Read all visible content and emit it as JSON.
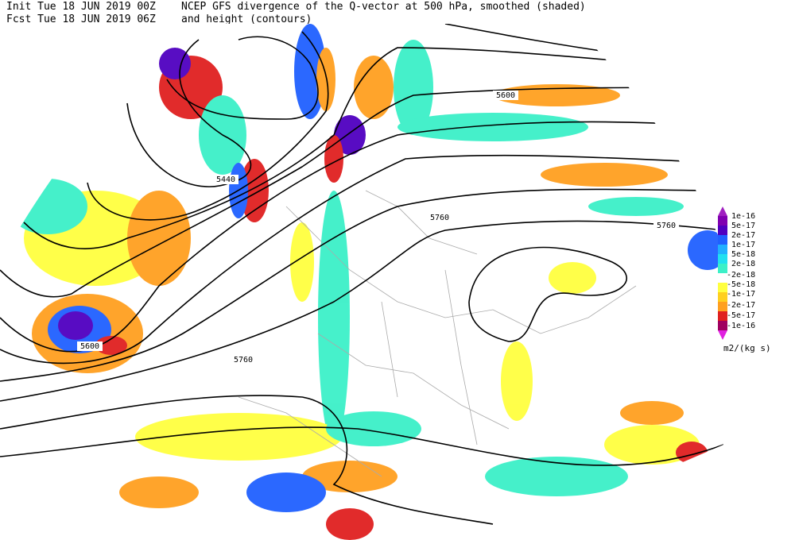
{
  "header": {
    "init": "Init  Tue 18 JUN 2019 00Z",
    "fcst": "Fcst Tue 18 JUN 2019 06Z",
    "title": "NCEP GFS divergence of the Q-vector at 500 hPa, smoothed (shaded)",
    "subtitle": "and height (contours)"
  },
  "contour_labels": [
    "5600",
    "5440",
    "5760",
    "5760",
    "5600",
    "5760"
  ],
  "legend": {
    "labels": [
      "1e-16",
      "5e-17",
      "2e-17",
      "1e-17",
      "5e-18",
      "2e-18",
      "-2e-18",
      "-5e-18",
      "-1e-17",
      "-2e-17",
      "-5e-17",
      "-1e-16"
    ],
    "units": "m2/(kg s)"
  }
}
